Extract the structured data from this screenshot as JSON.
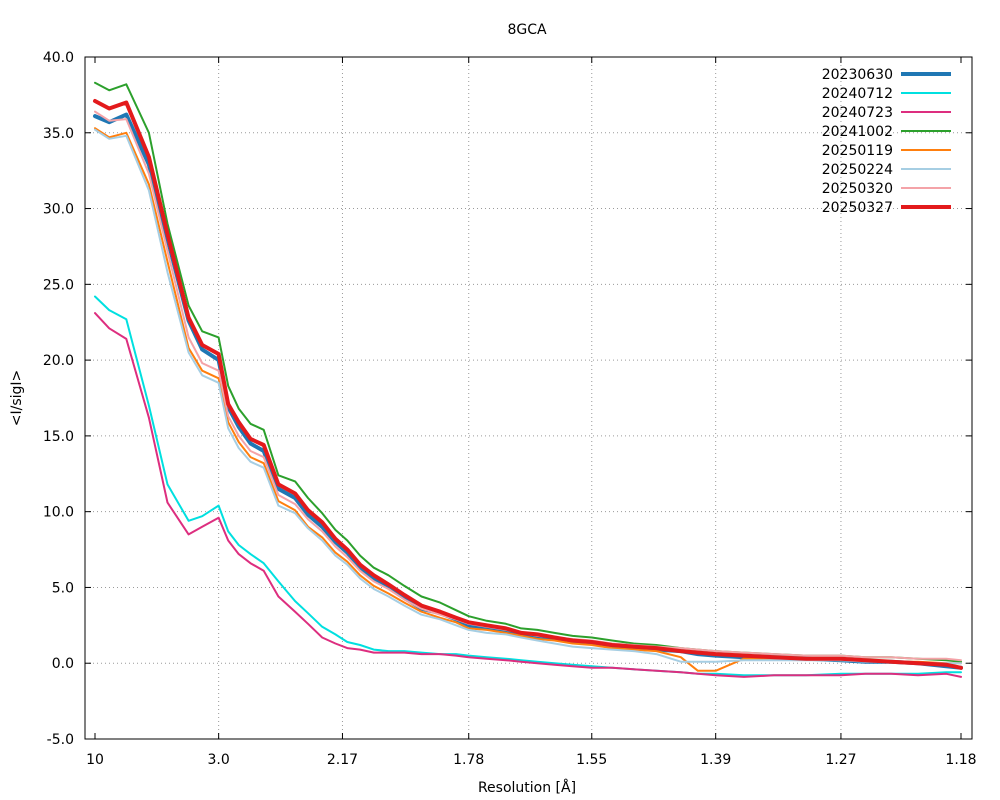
{
  "chart_data": {
    "type": "line",
    "title": "8GCA",
    "xlabel": "Resolution [Å]",
    "ylabel": "<I/sigI>",
    "x_tick_labels": [
      "10",
      "3.0",
      "2.17",
      "1.78",
      "1.55",
      "1.39",
      "1.27",
      "1.18"
    ],
    "y_tick_labels": [
      "-5.0",
      "0.0",
      "5.0",
      "10.0",
      "15.0",
      "20.0",
      "25.0",
      "30.0",
      "35.0",
      "40.0"
    ],
    "x_scale": "1/d^2",
    "x_ticks": [
      10,
      3.0,
      2.17,
      1.78,
      1.55,
      1.39,
      1.27,
      1.18
    ],
    "ylim": [
      -5,
      40
    ],
    "grid": true,
    "legend_position": "top-right",
    "series": [
      {
        "name": "20230630",
        "color": "#1f77b4",
        "width": 4,
        "x": [
          10,
          6.8,
          5.3,
          4.3,
          3.8,
          3.4,
          3.2,
          3.0,
          2.9,
          2.8,
          2.7,
          2.6,
          2.5,
          2.4,
          2.33,
          2.26,
          2.2,
          2.15,
          2.1,
          2.05,
          2.0,
          1.95,
          1.9,
          1.85,
          1.81,
          1.78,
          1.74,
          1.7,
          1.67,
          1.64,
          1.61,
          1.58,
          1.55,
          1.52,
          1.49,
          1.46,
          1.43,
          1.41,
          1.39,
          1.36,
          1.33,
          1.3,
          1.27,
          1.25,
          1.23,
          1.21,
          1.19,
          1.18
        ],
        "y": [
          36.1,
          35.7,
          36.2,
          32.9,
          28.0,
          22.6,
          20.7,
          20.0,
          16.9,
          15.6,
          14.5,
          14.0,
          11.5,
          10.9,
          9.8,
          9.0,
          8.0,
          7.3,
          6.3,
          5.6,
          5.0,
          4.3,
          3.6,
          3.3,
          2.9,
          2.5,
          2.3,
          2.1,
          1.9,
          1.7,
          1.6,
          1.4,
          1.3,
          1.1,
          1.0,
          0.9,
          0.8,
          0.6,
          0.5,
          0.4,
          0.4,
          0.3,
          0.2,
          0.1,
          0.1,
          0.0,
          -0.2,
          -0.3
        ]
      },
      {
        "name": "20240712",
        "color": "#00e0e0",
        "width": 2,
        "x": [
          10,
          6.8,
          5.3,
          4.3,
          3.8,
          3.4,
          3.2,
          3.0,
          2.9,
          2.8,
          2.7,
          2.6,
          2.5,
          2.4,
          2.33,
          2.26,
          2.2,
          2.15,
          2.1,
          2.05,
          2.0,
          1.95,
          1.9,
          1.85,
          1.81,
          1.78,
          1.74,
          1.7,
          1.67,
          1.64,
          1.61,
          1.58,
          1.55,
          1.52,
          1.49,
          1.46,
          1.43,
          1.41,
          1.39,
          1.36,
          1.33,
          1.3,
          1.27,
          1.25,
          1.23,
          1.21,
          1.19,
          1.18
        ],
        "y": [
          24.2,
          23.3,
          22.7,
          17.0,
          11.8,
          9.4,
          9.7,
          10.4,
          8.7,
          7.8,
          7.2,
          6.6,
          5.4,
          4.1,
          3.3,
          2.4,
          1.9,
          1.4,
          1.2,
          0.9,
          0.8,
          0.8,
          0.7,
          0.6,
          0.6,
          0.5,
          0.4,
          0.3,
          0.2,
          0.1,
          0.0,
          -0.1,
          -0.2,
          -0.3,
          -0.4,
          -0.5,
          -0.6,
          -0.7,
          -0.7,
          -0.8,
          -0.8,
          -0.8,
          -0.7,
          -0.7,
          -0.7,
          -0.7,
          -0.6,
          -0.6
        ]
      },
      {
        "name": "20240723",
        "color": "#dd2e7f",
        "width": 2,
        "x": [
          10,
          6.8,
          5.3,
          4.3,
          3.8,
          3.4,
          3.2,
          3.0,
          2.9,
          2.8,
          2.7,
          2.6,
          2.5,
          2.4,
          2.33,
          2.26,
          2.2,
          2.15,
          2.1,
          2.05,
          2.0,
          1.95,
          1.9,
          1.85,
          1.81,
          1.78,
          1.74,
          1.7,
          1.67,
          1.64,
          1.61,
          1.58,
          1.55,
          1.52,
          1.49,
          1.46,
          1.43,
          1.41,
          1.39,
          1.36,
          1.33,
          1.3,
          1.27,
          1.25,
          1.23,
          1.21,
          1.19,
          1.18
        ],
        "y": [
          23.1,
          22.1,
          21.4,
          16.2,
          10.6,
          8.5,
          9.0,
          9.6,
          8.1,
          7.2,
          6.6,
          6.1,
          4.4,
          3.4,
          2.6,
          1.7,
          1.3,
          1.0,
          0.9,
          0.7,
          0.7,
          0.7,
          0.6,
          0.6,
          0.5,
          0.4,
          0.3,
          0.2,
          0.1,
          0.0,
          -0.1,
          -0.2,
          -0.3,
          -0.3,
          -0.4,
          -0.5,
          -0.6,
          -0.7,
          -0.8,
          -0.9,
          -0.8,
          -0.8,
          -0.8,
          -0.7,
          -0.7,
          -0.8,
          -0.7,
          -0.9
        ]
      },
      {
        "name": "20241002",
        "color": "#2ca02c",
        "width": 2,
        "x": [
          10,
          6.8,
          5.3,
          4.3,
          3.8,
          3.4,
          3.2,
          3.0,
          2.9,
          2.8,
          2.7,
          2.6,
          2.5,
          2.4,
          2.33,
          2.26,
          2.2,
          2.15,
          2.1,
          2.05,
          2.0,
          1.95,
          1.9,
          1.85,
          1.81,
          1.78,
          1.74,
          1.7,
          1.67,
          1.64,
          1.61,
          1.58,
          1.55,
          1.52,
          1.49,
          1.46,
          1.43,
          1.41,
          1.39,
          1.36,
          1.33,
          1.3,
          1.27,
          1.25,
          1.23,
          1.21,
          1.19,
          1.18
        ],
        "y": [
          38.3,
          37.8,
          38.2,
          35.0,
          29.0,
          23.6,
          21.9,
          21.5,
          18.3,
          16.8,
          15.8,
          15.4,
          12.4,
          12.0,
          10.9,
          9.9,
          8.8,
          8.1,
          7.1,
          6.3,
          5.8,
          5.1,
          4.4,
          4.0,
          3.5,
          3.1,
          2.8,
          2.6,
          2.3,
          2.2,
          2.0,
          1.8,
          1.7,
          1.5,
          1.3,
          1.2,
          1.0,
          0.9,
          0.8,
          0.7,
          0.6,
          0.5,
          0.5,
          0.4,
          0.4,
          0.3,
          0.2,
          0.1
        ]
      },
      {
        "name": "20250119",
        "color": "#ff7f0e",
        "width": 2,
        "x": [
          10,
          6.8,
          5.3,
          4.3,
          3.8,
          3.4,
          3.2,
          3.0,
          2.9,
          2.8,
          2.7,
          2.6,
          2.5,
          2.4,
          2.33,
          2.26,
          2.2,
          2.15,
          2.1,
          2.05,
          2.0,
          1.95,
          1.9,
          1.85,
          1.81,
          1.78,
          1.74,
          1.7,
          1.67,
          1.64,
          1.61,
          1.58,
          1.55,
          1.52,
          1.49,
          1.46,
          1.43,
          1.41,
          1.39,
          1.36,
          1.33,
          1.3,
          1.27,
          1.25,
          1.23,
          1.21,
          1.19,
          1.18
        ],
        "y": [
          35.3,
          34.7,
          35.0,
          31.6,
          26.5,
          20.8,
          19.3,
          18.8,
          15.9,
          14.6,
          13.6,
          13.2,
          10.7,
          10.1,
          9.0,
          8.3,
          7.3,
          6.7,
          5.8,
          5.1,
          4.6,
          4.0,
          3.4,
          3.0,
          2.7,
          2.3,
          2.2,
          2.0,
          1.8,
          1.6,
          1.5,
          1.3,
          1.2,
          1.0,
          0.9,
          0.8,
          0.4,
          -0.5,
          -0.5,
          0.3,
          0.3,
          0.3,
          0.2,
          0.2,
          0.1,
          0.1,
          0.0,
          0.0
        ]
      },
      {
        "name": "20250224",
        "color": "#a6cee3",
        "width": 2,
        "x": [
          10,
          6.8,
          5.3,
          4.3,
          3.8,
          3.4,
          3.2,
          3.0,
          2.9,
          2.8,
          2.7,
          2.6,
          2.5,
          2.4,
          2.33,
          2.26,
          2.2,
          2.15,
          2.1,
          2.05,
          2.0,
          1.95,
          1.9,
          1.85,
          1.81,
          1.78,
          1.74,
          1.7,
          1.67,
          1.64,
          1.61,
          1.58,
          1.55,
          1.52,
          1.49,
          1.46,
          1.43,
          1.41,
          1.39,
          1.36,
          1.33,
          1.3,
          1.27,
          1.25,
          1.23,
          1.21,
          1.19,
          1.18
        ],
        "y": [
          35.2,
          34.6,
          34.8,
          31.2,
          25.8,
          20.5,
          19.0,
          18.5,
          15.5,
          14.2,
          13.3,
          12.9,
          10.4,
          9.9,
          8.9,
          8.1,
          7.1,
          6.5,
          5.6,
          4.9,
          4.4,
          3.8,
          3.2,
          2.9,
          2.5,
          2.2,
          2.0,
          1.9,
          1.7,
          1.5,
          1.3,
          1.1,
          1.0,
          0.9,
          0.8,
          0.6,
          0.1,
          0.1,
          0.1,
          0.2,
          0.2,
          0.2,
          0.2,
          0.1,
          0.1,
          0.0,
          0.0,
          0.0
        ]
      },
      {
        "name": "20250320",
        "color": "#f4a3a8",
        "width": 2,
        "x": [
          10,
          6.8,
          5.3,
          4.3,
          3.8,
          3.4,
          3.2,
          3.0,
          2.9,
          2.8,
          2.7,
          2.6,
          2.5,
          2.4,
          2.33,
          2.26,
          2.2,
          2.15,
          2.1,
          2.05,
          2.0,
          1.95,
          1.9,
          1.85,
          1.81,
          1.78,
          1.74,
          1.7,
          1.67,
          1.64,
          1.61,
          1.58,
          1.55,
          1.52,
          1.49,
          1.46,
          1.43,
          1.41,
          1.39,
          1.36,
          1.33,
          1.3,
          1.27,
          1.25,
          1.23,
          1.21,
          1.19,
          1.18
        ],
        "y": [
          36.4,
          35.8,
          35.9,
          32.3,
          27.2,
          21.5,
          19.8,
          19.3,
          16.3,
          15.0,
          14.0,
          13.6,
          11.1,
          10.5,
          9.5,
          8.7,
          7.7,
          7.0,
          6.1,
          5.4,
          4.9,
          4.2,
          3.6,
          3.2,
          2.9,
          2.6,
          2.4,
          2.2,
          2.0,
          1.8,
          1.7,
          1.6,
          1.5,
          1.3,
          1.2,
          1.1,
          1.0,
          0.9,
          0.8,
          0.7,
          0.6,
          0.5,
          0.5,
          0.4,
          0.4,
          0.3,
          0.3,
          0.2
        ]
      },
      {
        "name": "20250327",
        "color": "#e31a1c",
        "width": 4,
        "x": [
          10,
          6.8,
          5.3,
          4.3,
          3.8,
          3.4,
          3.2,
          3.0,
          2.9,
          2.8,
          2.7,
          2.6,
          2.5,
          2.4,
          2.33,
          2.26,
          2.2,
          2.15,
          2.1,
          2.05,
          2.0,
          1.95,
          1.9,
          1.85,
          1.81,
          1.78,
          1.74,
          1.7,
          1.67,
          1.64,
          1.61,
          1.58,
          1.55,
          1.52,
          1.49,
          1.46,
          1.43,
          1.41,
          1.39,
          1.36,
          1.33,
          1.3,
          1.27,
          1.25,
          1.23,
          1.21,
          1.19,
          1.18
        ],
        "y": [
          37.1,
          36.6,
          37.0,
          33.4,
          28.3,
          22.8,
          21.0,
          20.4,
          17.1,
          15.9,
          14.8,
          14.4,
          11.8,
          11.2,
          10.1,
          9.3,
          8.2,
          7.5,
          6.5,
          5.8,
          5.2,
          4.5,
          3.8,
          3.4,
          3.0,
          2.7,
          2.5,
          2.3,
          2.0,
          1.9,
          1.7,
          1.5,
          1.4,
          1.2,
          1.1,
          1.0,
          0.8,
          0.7,
          0.6,
          0.5,
          0.4,
          0.3,
          0.3,
          0.2,
          0.1,
          0.0,
          -0.1,
          -0.3
        ]
      }
    ]
  }
}
